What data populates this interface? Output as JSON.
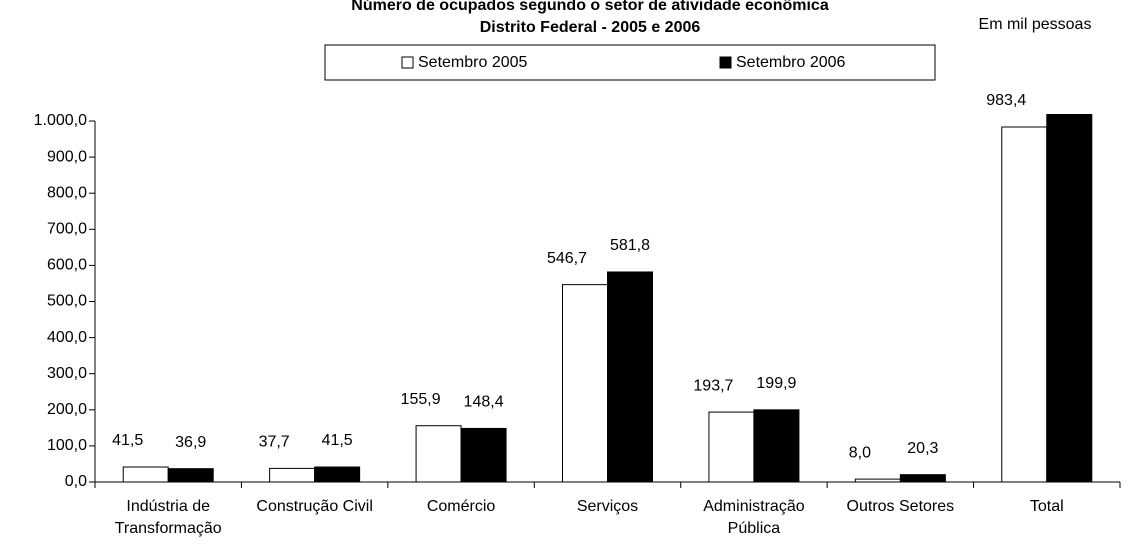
{
  "chart_data": {
    "type": "bar",
    "title": "Número de ocupados segundo o setor de atividade econômica",
    "subtitle": "Distrito Federal - 2005 e 2006",
    "annotation": "Em mil pessoas",
    "categories": [
      "Indústria de Transformação",
      "Construção Civil",
      "Comércio",
      "Serviços",
      "Administração Pública",
      "Outros Setores",
      "Total"
    ],
    "series": [
      {
        "name": "Setembro 2005",
        "color": "#ffffff",
        "edgecolor": "#000000",
        "values": [
          41.5,
          37.7,
          155.9,
          546.7,
          193.7,
          8.0,
          983.4
        ],
        "value_labels": [
          "41,5",
          "37,7",
          "155,9",
          "546,7",
          "193,7",
          "8,0",
          "983,4"
        ]
      },
      {
        "name": "Setembro 2006",
        "color": "#000000",
        "edgecolor": "#000000",
        "values": [
          36.9,
          41.5,
          148.4,
          581.8,
          199.9,
          20.3,
          1028.8
        ],
        "value_labels": [
          "36,9",
          "41,5",
          "148,4",
          "581,8",
          "199,9",
          "20,3",
          null
        ]
      }
    ],
    "ylim": [
      0,
      1000
    ],
    "yticks": [
      {
        "value": 0,
        "label": "0,0"
      },
      {
        "value": 100,
        "label": "100,0"
      },
      {
        "value": 200,
        "label": "200,0"
      },
      {
        "value": 300,
        "label": "300,0"
      },
      {
        "value": 400,
        "label": "400,0"
      },
      {
        "value": 500,
        "label": "500,0"
      },
      {
        "value": 600,
        "label": "600,0"
      },
      {
        "value": 700,
        "label": "700,0"
      },
      {
        "value": 800,
        "label": "800,0"
      },
      {
        "value": 900,
        "label": "900,0"
      },
      {
        "value": 1000,
        "label": "1.000,0"
      }
    ],
    "grid": false,
    "legend": "top"
  }
}
